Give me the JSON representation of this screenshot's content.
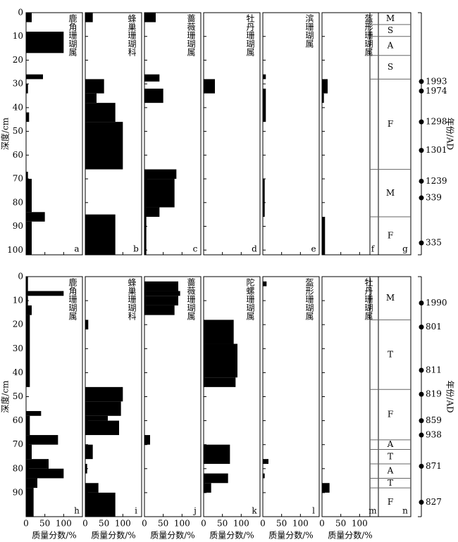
{
  "chart_data": {
    "type": "depth-profile",
    "xlim": [
      0,
      150
    ],
    "xticks": [
      0,
      50,
      100
    ],
    "xlabel": "质量分数/%",
    "rows": [
      {
        "ylim": [
          0,
          102
        ],
        "yticks": [
          0,
          10,
          20,
          30,
          40,
          50,
          60,
          70,
          80,
          90,
          100
        ],
        "ylabel": "深度/cm",
        "show_x_labels": false,
        "age_label": "年份/AD",
        "panels": [
          {
            "name": "鹿角珊瑚属",
            "letter": "a",
            "top": [
              0,
              8,
              26,
              30,
              42,
              67,
              70,
              84,
              88
            ],
            "bottom": [
              4,
              17,
              28,
              34,
              46,
              70,
              84,
              88,
              102
            ],
            "values": [
              15,
              100,
              45,
              5,
              8,
              5,
              15,
              50,
              15
            ]
          },
          {
            "name": "蜂巢珊瑚科",
            "letter": "b",
            "top": [
              0,
              28,
              34,
              38,
              46,
              85
            ],
            "bottom": [
              4,
              34,
              38,
              46,
              66,
              102
            ],
            "values": [
              20,
              50,
              30,
              80,
              100,
              80
            ]
          },
          {
            "name": "蔷薇珊瑚属",
            "letter": "c",
            "top": [
              0,
              26,
              32,
              66,
              70,
              82,
              86
            ],
            "bottom": [
              4,
              29,
              38,
              70,
              82,
              86,
              102
            ],
            "values": [
              30,
              40,
              50,
              85,
              80,
              40,
              5
            ]
          },
          {
            "name": "牡丹珊瑚属",
            "letter": "d",
            "top": [
              28
            ],
            "bottom": [
              34
            ],
            "values": [
              30
            ]
          },
          {
            "name": "滨珊瑚属",
            "letter": "e",
            "top": [
              26,
              32,
              70
            ],
            "bottom": [
              28,
              46,
              86
            ],
            "values": [
              8,
              8,
              5
            ]
          },
          {
            "name": "盔形珊瑚属",
            "letter": "f",
            "top": [
              28,
              34,
              86
            ],
            "bottom": [
              34,
              38,
              102
            ],
            "values": [
              15,
              5,
              8
            ]
          }
        ],
        "facies": {
          "letter": "g",
          "top": [
            0,
            5,
            10,
            18,
            28,
            66,
            86
          ],
          "bottom": [
            5,
            10,
            18,
            28,
            66,
            86,
            102
          ],
          "labels": [
            "M",
            "S",
            "A",
            "S",
            "F",
            "M",
            "F"
          ]
        },
        "ages": {
          "depths": [
            29,
            33,
            46,
            58,
            71,
            78,
            97
          ],
          "labels": [
            "1993",
            "1974",
            "1298",
            "1301",
            "1239",
            "339",
            "335"
          ]
        }
      },
      {
        "ylim": [
          0,
          100
        ],
        "yticks": [
          0,
          10,
          20,
          30,
          40,
          50,
          60,
          70,
          80,
          90
        ],
        "ylabel": "深度/cm",
        "show_x_labels": true,
        "age_label": "年份/AD",
        "panels": [
          {
            "name": "鹿角珊瑚属",
            "letter": "h",
            "top": [
              0,
              6,
              8,
              12,
              16,
              56,
              58,
              66,
              70,
              76,
              80,
              84,
              88
            ],
            "bottom": [
              6,
              8,
              12,
              16,
              46,
              58,
              66,
              70,
              76,
              80,
              84,
              88,
              100
            ],
            "values": [
              5,
              100,
              5,
              15,
              10,
              40,
              10,
              85,
              15,
              60,
              100,
              30,
              20
            ]
          },
          {
            "name": "蜂巢珊瑚科",
            "letter": "i",
            "top": [
              18,
              46,
              52,
              58,
              60,
              70,
              78,
              86,
              90
            ],
            "bottom": [
              22,
              52,
              58,
              60,
              66,
              76,
              82,
              90,
              100
            ],
            "values": [
              8,
              100,
              95,
              60,
              90,
              20,
              5,
              35,
              80
            ]
          },
          {
            "name": "蔷薇珊瑚属",
            "letter": "j",
            "top": [
              2,
              6,
              8,
              12,
              66
            ],
            "bottom": [
              6,
              8,
              12,
              16,
              70
            ],
            "values": [
              90,
              95,
              90,
              80,
              15
            ]
          },
          {
            "name": "陀螺珊瑚属",
            "letter": "k",
            "top": [
              18,
              28,
              42,
              70,
              82,
              86
            ],
            "bottom": [
              28,
              42,
              46,
              78,
              86,
              90
            ],
            "values": [
              80,
              90,
              85,
              70,
              65,
              20
            ]
          },
          {
            "name": "盔形珊瑚属",
            "letter": "l",
            "top": [
              2,
              76,
              82
            ],
            "bottom": [
              4,
              78,
              84
            ],
            "values": [
              10,
              15,
              5
            ]
          },
          {
            "name": "牡丹珊瑚属",
            "letter": "m",
            "top": [
              86
            ],
            "bottom": [
              90
            ],
            "values": [
              20
            ]
          }
        ],
        "facies": {
          "letter": "n",
          "top": [
            0,
            18,
            47,
            68,
            72,
            78,
            84,
            88
          ],
          "bottom": [
            18,
            47,
            68,
            72,
            78,
            84,
            88,
            100
          ],
          "labels": [
            "M",
            "T",
            "F",
            "A",
            "T",
            "A",
            "T",
            "F"
          ]
        },
        "ages": {
          "depths": [
            11,
            21,
            39,
            49,
            60,
            66,
            79,
            94
          ],
          "labels": [
            "1990",
            "801",
            "811",
            "819",
            "859",
            "938",
            "871",
            "827"
          ]
        }
      }
    ]
  }
}
